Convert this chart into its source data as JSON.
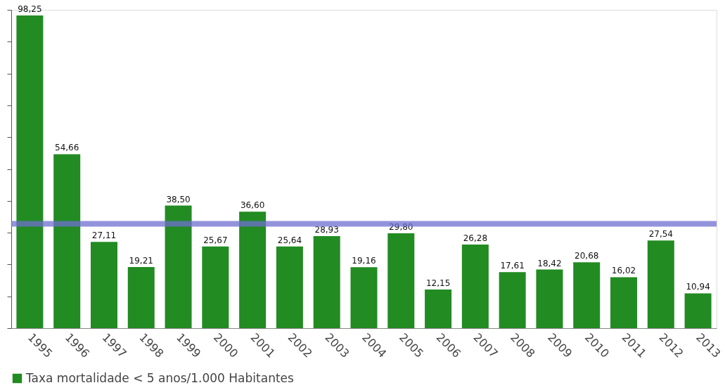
{
  "chart_data": {
    "type": "bar",
    "categories": [
      "1995",
      "1996",
      "1997",
      "1998",
      "1999",
      "2000",
      "2001",
      "2002",
      "2003",
      "2004",
      "2005",
      "2006",
      "2007",
      "2008",
      "2009",
      "2010",
      "2011",
      "2012",
      "2013"
    ],
    "series": [
      {
        "name": "Taxa mortalidade < 5 anos/1.000 Habitantes",
        "color": "#228b22",
        "values": [
          98.25,
          54.66,
          27.11,
          19.21,
          38.5,
          25.67,
          36.6,
          25.64,
          28.93,
          19.16,
          29.8,
          12.15,
          26.28,
          17.61,
          18.42,
          20.68,
          16.02,
          27.54,
          10.94
        ],
        "value_labels": [
          "98,25",
          "54,66",
          "27,11",
          "19,21",
          "38,50",
          "25,67",
          "36,60",
          "25,64",
          "28,93",
          "19,16",
          "29,80",
          "12,15",
          "26,28",
          "17,61",
          "18,42",
          "20,68",
          "16,02",
          "27,54",
          "10,94"
        ]
      }
    ],
    "ylim": [
      0,
      100
    ],
    "yticks": [
      {
        "value": 0,
        "label": null
      },
      {
        "value": 10,
        "label": null
      },
      {
        "value": 20,
        "label": null
      },
      {
        "value": 30,
        "label": null
      },
      {
        "value": 40,
        "label": null
      },
      {
        "value": 50,
        "label": null
      },
      {
        "value": 60,
        "label": null
      },
      {
        "value": 70,
        "label": null
      },
      {
        "value": 80,
        "label": null
      },
      {
        "value": 90,
        "label": null
      },
      {
        "value": 100,
        "label": null
      }
    ],
    "tick_labels": "x",
    "ref_lines": [
      {
        "axis": "y",
        "value": 32.8,
        "color": "#6f6fd0"
      }
    ],
    "legend": "bottom",
    "grid": false
  }
}
